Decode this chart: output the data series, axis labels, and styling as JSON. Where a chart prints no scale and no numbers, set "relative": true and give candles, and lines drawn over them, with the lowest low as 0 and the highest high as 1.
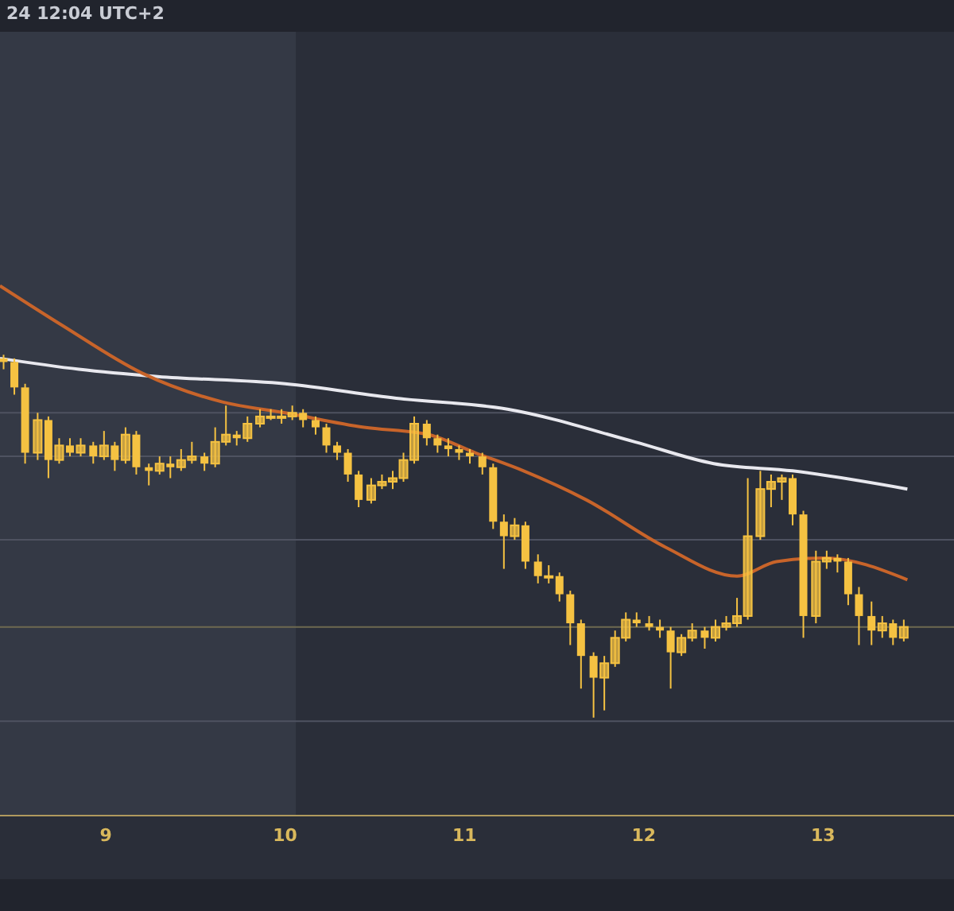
{
  "chart_data": {
    "type": "candlestick",
    "relative": true,
    "tick_labels": "x",
    "color": "#f5c242",
    "annotations": [
      "24 12:04 UTC+2"
    ],
    "xlim": [
      8.41,
      13.73
    ],
    "xticks": [
      9,
      10,
      11,
      12,
      13
    ],
    "x": [
      8.43,
      8.49,
      8.55,
      8.62,
      8.68,
      8.74,
      8.8,
      8.86,
      8.93,
      8.99,
      9.05,
      9.11,
      9.17,
      9.24,
      9.3,
      9.36,
      9.42,
      9.48,
      9.55,
      9.61,
      9.67,
      9.73,
      9.79,
      9.86,
      9.92,
      9.98,
      10.04,
      10.1,
      10.17,
      10.23,
      10.29,
      10.35,
      10.41,
      10.48,
      10.54,
      10.6,
      10.66,
      10.72,
      10.79,
      10.85,
      10.91,
      10.97,
      11.03,
      11.1,
      11.16,
      11.22,
      11.28,
      11.34,
      11.41,
      11.47,
      11.53,
      11.59,
      11.65,
      11.72,
      11.78,
      11.84,
      11.9,
      11.96,
      12.03,
      12.09,
      12.15,
      12.21,
      12.27,
      12.34,
      12.4,
      12.46,
      12.52,
      12.58,
      12.65,
      12.71,
      12.77,
      12.83,
      12.89,
      12.96,
      13.02,
      13.08,
      13.14,
      13.2,
      13.27,
      13.33,
      13.39,
      13.45
    ],
    "ohlc": [
      [
        0.99,
        1,
        0.96,
        0.98
      ],
      [
        0.98,
        0.99,
        0.89,
        0.91
      ],
      [
        0.91,
        0.92,
        0.7,
        0.73
      ],
      [
        0.73,
        0.84,
        0.71,
        0.82
      ],
      [
        0.82,
        0.83,
        0.66,
        0.71
      ],
      [
        0.71,
        0.77,
        0.7,
        0.75
      ],
      [
        0.75,
        0.77,
        0.72,
        0.73
      ],
      [
        0.73,
        0.77,
        0.72,
        0.75
      ],
      [
        0.75,
        0.76,
        0.7,
        0.72
      ],
      [
        0.72,
        0.79,
        0.71,
        0.75
      ],
      [
        0.75,
        0.76,
        0.68,
        0.71
      ],
      [
        0.71,
        0.8,
        0.7,
        0.78
      ],
      [
        0.78,
        0.79,
        0.67,
        0.69
      ],
      [
        0.69,
        0.7,
        0.64,
        0.68
      ],
      [
        0.68,
        0.72,
        0.67,
        0.7
      ],
      [
        0.7,
        0.72,
        0.66,
        0.69
      ],
      [
        0.69,
        0.74,
        0.68,
        0.71
      ],
      [
        0.71,
        0.76,
        0.7,
        0.72
      ],
      [
        0.72,
        0.73,
        0.68,
        0.7
      ],
      [
        0.7,
        0.8,
        0.69,
        0.76
      ],
      [
        0.76,
        0.86,
        0.75,
        0.78
      ],
      [
        0.78,
        0.79,
        0.75,
        0.77
      ],
      [
        0.77,
        0.83,
        0.76,
        0.81
      ],
      [
        0.81,
        0.85,
        0.8,
        0.83
      ],
      [
        0.83,
        0.85,
        0.82,
        0.83
      ],
      [
        0.83,
        0.85,
        0.81,
        0.83
      ],
      [
        0.83,
        0.86,
        0.82,
        0.84
      ],
      [
        0.84,
        0.85,
        0.8,
        0.82
      ],
      [
        0.82,
        0.83,
        0.78,
        0.8
      ],
      [
        0.8,
        0.81,
        0.73,
        0.75
      ],
      [
        0.75,
        0.76,
        0.71,
        0.73
      ],
      [
        0.73,
        0.74,
        0.65,
        0.67
      ],
      [
        0.67,
        0.68,
        0.58,
        0.6
      ],
      [
        0.6,
        0.66,
        0.59,
        0.64
      ],
      [
        0.64,
        0.67,
        0.63,
        0.65
      ],
      [
        0.65,
        0.68,
        0.63,
        0.66
      ],
      [
        0.66,
        0.73,
        0.65,
        0.71
      ],
      [
        0.71,
        0.83,
        0.7,
        0.81
      ],
      [
        0.81,
        0.82,
        0.75,
        0.77
      ],
      [
        0.77,
        0.78,
        0.73,
        0.75
      ],
      [
        0.75,
        0.77,
        0.72,
        0.74
      ],
      [
        0.74,
        0.75,
        0.71,
        0.73
      ],
      [
        0.73,
        0.74,
        0.7,
        0.72
      ],
      [
        0.72,
        0.73,
        0.67,
        0.69
      ],
      [
        0.69,
        0.7,
        0.52,
        0.54
      ],
      [
        0.54,
        0.56,
        0.41,
        0.5
      ],
      [
        0.5,
        0.55,
        0.49,
        0.53
      ],
      [
        0.53,
        0.54,
        0.41,
        0.43
      ],
      [
        0.43,
        0.45,
        0.37,
        0.39
      ],
      [
        0.39,
        0.42,
        0.37,
        0.39
      ],
      [
        0.39,
        0.4,
        0.32,
        0.34
      ],
      [
        0.34,
        0.35,
        0.2,
        0.26
      ],
      [
        0.26,
        0.27,
        0.08,
        0.17
      ],
      [
        0.17,
        0.18,
        0,
        0.11
      ],
      [
        0.11,
        0.17,
        0.02,
        0.15
      ],
      [
        0.15,
        0.24,
        0.14,
        0.22
      ],
      [
        0.22,
        0.29,
        0.21,
        0.27
      ],
      [
        0.27,
        0.29,
        0.25,
        0.26
      ],
      [
        0.26,
        0.28,
        0.24,
        0.25
      ],
      [
        0.25,
        0.27,
        0.22,
        0.24
      ],
      [
        0.24,
        0.25,
        0.08,
        0.18
      ],
      [
        0.18,
        0.23,
        0.17,
        0.22
      ],
      [
        0.22,
        0.26,
        0.21,
        0.24
      ],
      [
        0.24,
        0.25,
        0.19,
        0.22
      ],
      [
        0.22,
        0.27,
        0.21,
        0.25
      ],
      [
        0.25,
        0.28,
        0.24,
        0.26
      ],
      [
        0.26,
        0.33,
        0.25,
        0.28
      ],
      [
        0.28,
        0.66,
        0.27,
        0.5
      ],
      [
        0.5,
        0.68,
        0.49,
        0.63
      ],
      [
        0.63,
        0.67,
        0.58,
        0.65
      ],
      [
        0.65,
        0.67,
        0.6,
        0.66
      ],
      [
        0.66,
        0.67,
        0.53,
        0.56
      ],
      [
        0.56,
        0.57,
        0.22,
        0.28
      ],
      [
        0.28,
        0.46,
        0.26,
        0.43
      ],
      [
        0.43,
        0.46,
        0.41,
        0.44
      ],
      [
        0.44,
        0.45,
        0.4,
        0.43
      ],
      [
        0.43,
        0.44,
        0.31,
        0.34
      ],
      [
        0.34,
        0.36,
        0.2,
        0.28
      ],
      [
        0.28,
        0.32,
        0.2,
        0.24
      ],
      [
        0.24,
        0.28,
        0.22,
        0.26
      ],
      [
        0.26,
        0.27,
        0.2,
        0.22
      ],
      [
        0.22,
        0.27,
        0.21,
        0.25
      ]
    ],
    "series": [
      {
        "type": "line",
        "color": "#e8e8ee",
        "x": [
          8.41,
          8.85,
          9.29,
          10.0,
          10.62,
          11.24,
          11.95,
          12.39,
          12.83,
          13.47
        ],
        "values": [
          0.99,
          0.96,
          0.94,
          0.92,
          0.88,
          0.85,
          0.76,
          0.7,
          0.68,
          0.63
        ]
      },
      {
        "type": "line",
        "color": "#c8642a",
        "x": [
          8.41,
          8.76,
          9.2,
          9.65,
          10.0,
          10.44,
          10.8,
          11.06,
          11.33,
          11.68,
          12.12,
          12.52,
          12.74,
          13.01,
          13.47
        ],
        "values": [
          1.19,
          1.08,
          0.95,
          0.87,
          0.84,
          0.8,
          0.78,
          0.73,
          0.68,
          0.6,
          0.47,
          0.39,
          0.43,
          0.44,
          0.38
        ]
      }
    ],
    "bands": [
      {
        "axis": "x",
        "from": 8.41,
        "to": 10.06,
        "color": "#343945"
      }
    ],
    "ref_lines": [
      {
        "axis": "y",
        "value": 0.84,
        "color": "#4e5260",
        "line_style": "solid"
      },
      {
        "axis": "y",
        "value": 0.72,
        "color": "#4e5260",
        "line_style": "solid"
      },
      {
        "axis": "y",
        "value": 0.49,
        "color": "#4e5260",
        "line_style": "solid"
      },
      {
        "axis": "y",
        "value": 0.25,
        "color": "#6e6a50",
        "line_style": "solid"
      },
      {
        "axis": "y",
        "value": -0.01,
        "color": "#4e5260",
        "line_style": "solid"
      }
    ]
  }
}
